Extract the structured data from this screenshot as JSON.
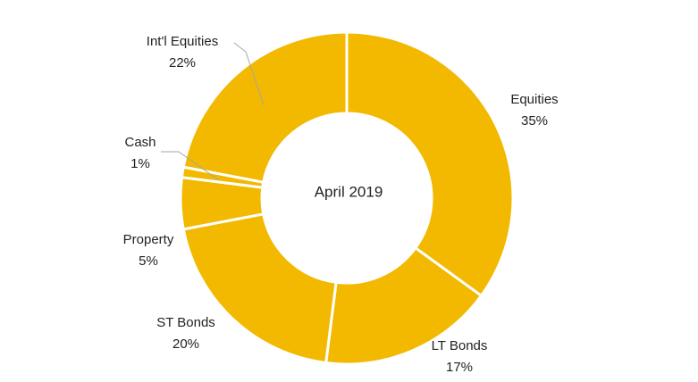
{
  "chart_data": {
    "type": "donut",
    "center_label": "April 2019",
    "categories": [
      "Equities",
      "LT Bonds",
      "ST Bonds",
      "Property",
      "Cash",
      "Int'l Equities"
    ],
    "values": [
      35,
      17,
      20,
      5,
      1,
      22
    ],
    "value_labels": [
      "35%",
      "17%",
      "20%",
      "5%",
      "1%",
      "22%"
    ],
    "color": "#f2b900"
  }
}
